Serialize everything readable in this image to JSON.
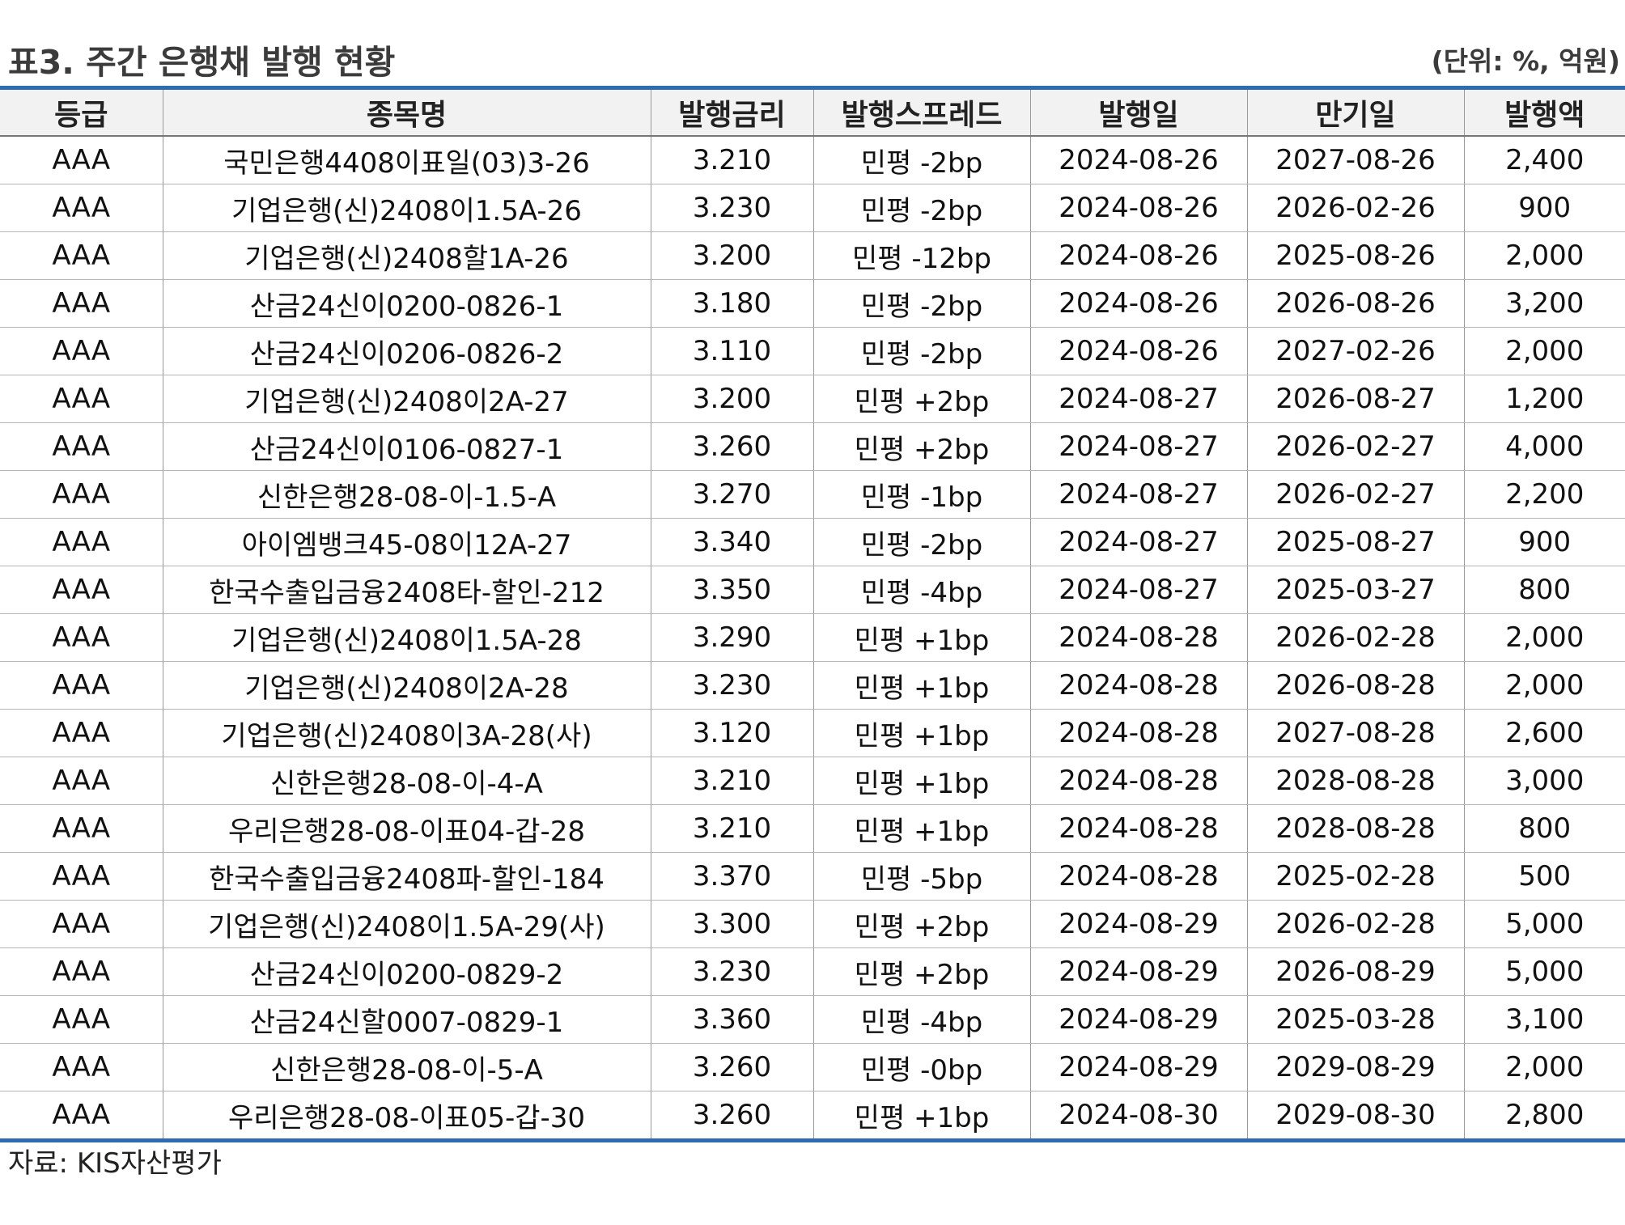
{
  "title": "표3. 주간 은행채 발행 현황",
  "unit": "(단위: %, 억원)",
  "table": {
    "headers": [
      "등급",
      "종목명",
      "발행금리",
      "발행스프레드",
      "발행일",
      "만기일",
      "발행액"
    ],
    "rows": [
      [
        "AAA",
        "국민은행4408이표일(03)3-26",
        "3.210",
        "민평 -2bp",
        "2024-08-26",
        "2027-08-26",
        "2,400"
      ],
      [
        "AAA",
        "기업은행(신)2408이1.5A-26",
        "3.230",
        "민평 -2bp",
        "2024-08-26",
        "2026-02-26",
        "900"
      ],
      [
        "AAA",
        "기업은행(신)2408할1A-26",
        "3.200",
        "민평 -12bp",
        "2024-08-26",
        "2025-08-26",
        "2,000"
      ],
      [
        "AAA",
        "산금24신이0200-0826-1",
        "3.180",
        "민평 -2bp",
        "2024-08-26",
        "2026-08-26",
        "3,200"
      ],
      [
        "AAA",
        "산금24신이0206-0826-2",
        "3.110",
        "민평 -2bp",
        "2024-08-26",
        "2027-02-26",
        "2,000"
      ],
      [
        "AAA",
        "기업은행(신)2408이2A-27",
        "3.200",
        "민평 +2bp",
        "2024-08-27",
        "2026-08-27",
        "1,200"
      ],
      [
        "AAA",
        "산금24신이0106-0827-1",
        "3.260",
        "민평 +2bp",
        "2024-08-27",
        "2026-02-27",
        "4,000"
      ],
      [
        "AAA",
        "신한은행28-08-이-1.5-A",
        "3.270",
        "민평 -1bp",
        "2024-08-27",
        "2026-02-27",
        "2,200"
      ],
      [
        "AAA",
        "아이엠뱅크45-08이12A-27",
        "3.340",
        "민평 -2bp",
        "2024-08-27",
        "2025-08-27",
        "900"
      ],
      [
        "AAA",
        "한국수출입금융2408타-할인-212",
        "3.350",
        "민평 -4bp",
        "2024-08-27",
        "2025-03-27",
        "800"
      ],
      [
        "AAA",
        "기업은행(신)2408이1.5A-28",
        "3.290",
        "민평 +1bp",
        "2024-08-28",
        "2026-02-28",
        "2,000"
      ],
      [
        "AAA",
        "기업은행(신)2408이2A-28",
        "3.230",
        "민평 +1bp",
        "2024-08-28",
        "2026-08-28",
        "2,000"
      ],
      [
        "AAA",
        "기업은행(신)2408이3A-28(사)",
        "3.120",
        "민평 +1bp",
        "2024-08-28",
        "2027-08-28",
        "2,600"
      ],
      [
        "AAA",
        "신한은행28-08-이-4-A",
        "3.210",
        "민평 +1bp",
        "2024-08-28",
        "2028-08-28",
        "3,000"
      ],
      [
        "AAA",
        "우리은행28-08-이표04-갑-28",
        "3.210",
        "민평 +1bp",
        "2024-08-28",
        "2028-08-28",
        "800"
      ],
      [
        "AAA",
        "한국수출입금융2408파-할인-184",
        "3.370",
        "민평 -5bp",
        "2024-08-28",
        "2025-02-28",
        "500"
      ],
      [
        "AAA",
        "기업은행(신)2408이1.5A-29(사)",
        "3.300",
        "민평 +2bp",
        "2024-08-29",
        "2026-02-28",
        "5,000"
      ],
      [
        "AAA",
        "산금24신이0200-0829-2",
        "3.230",
        "민평 +2bp",
        "2024-08-29",
        "2026-08-29",
        "5,000"
      ],
      [
        "AAA",
        "산금24신할0007-0829-1",
        "3.360",
        "민평 -4bp",
        "2024-08-29",
        "2025-03-28",
        "3,100"
      ],
      [
        "AAA",
        "신한은행28-08-이-5-A",
        "3.260",
        "민평 -0bp",
        "2024-08-29",
        "2029-08-29",
        "2,000"
      ],
      [
        "AAA",
        "우리은행28-08-이표05-갑-30",
        "3.260",
        "민평 +1bp",
        "2024-08-30",
        "2029-08-30",
        "2,800"
      ]
    ]
  },
  "source": "자료: KIS자산평가",
  "colors": {
    "rule": "#2e6bb1",
    "header_bg": "#f2f2f2"
  }
}
